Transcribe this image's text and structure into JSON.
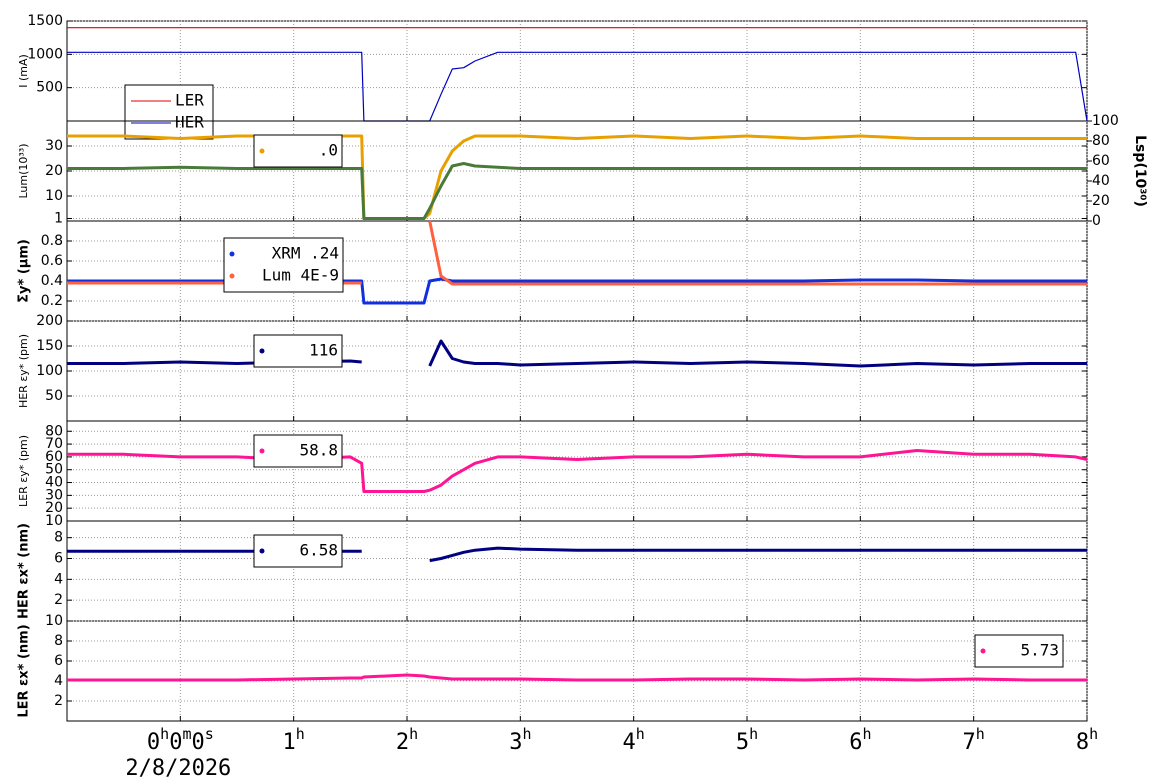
{
  "chart_data": [
    {
      "type": "line",
      "ylabel": "I (mA)",
      "xlim": [
        -1,
        8
      ],
      "ylim": [
        0,
        1500
      ],
      "yticks": [
        500,
        1000,
        1500
      ],
      "grid": true,
      "legend": "upper left",
      "x": [
        -1,
        -0.5,
        0,
        0.5,
        1,
        1.5,
        1.6,
        1.62,
        2.0,
        2.15,
        2.2,
        2.3,
        2.4,
        2.5,
        2.6,
        2.8,
        3,
        3.5,
        4,
        4.5,
        5,
        5.5,
        6,
        6.5,
        7,
        7.5,
        7.9,
        8
      ],
      "series": [
        {
          "name": "LER",
          "color": "#e00000",
          "values": [
            1400,
            1400,
            1400,
            1400,
            1400,
            1400,
            1400,
            1400,
            1400,
            1400,
            1400,
            1400,
            1400,
            1400,
            1400,
            1400,
            1400,
            1400,
            1400,
            1400,
            1400,
            1400,
            1400,
            1400,
            1400,
            1400,
            1400,
            1400
          ]
        },
        {
          "name": "HER",
          "color": "#0000c0",
          "values": [
            1030,
            1030,
            1030,
            1030,
            1030,
            1030,
            1030,
            0,
            0,
            0,
            0,
            400,
            780,
            800,
            900,
            1030,
            1030,
            1030,
            1030,
            1030,
            1030,
            1030,
            1030,
            1030,
            1030,
            1030,
            1030,
            0
          ]
        }
      ]
    },
    {
      "type": "line",
      "ylabel": "Lum(10³³)",
      "y2label": "Lsp(10³⁰)",
      "xlim": [
        -1,
        8
      ],
      "ylim": [
        0,
        40
      ],
      "yticks": [
        1,
        10,
        20,
        30
      ],
      "y2lim": [
        0,
        100
      ],
      "y2ticks": [
        0,
        20,
        40,
        60,
        80,
        100
      ],
      "grid": true,
      "legend": "upper left",
      "x": [
        -1,
        -0.5,
        0,
        0.5,
        1,
        1.5,
        1.6,
        1.62,
        2.0,
        2.15,
        2.2,
        2.3,
        2.4,
        2.5,
        2.6,
        2.8,
        3,
        3.5,
        4,
        4.5,
        5,
        5.5,
        6,
        6.5,
        7,
        7.5,
        7.9,
        8
      ],
      "series": [
        {
          "name": ".0",
          "color": "#e8a000",
          "values": [
            34,
            34,
            33,
            34,
            34,
            34,
            34,
            1,
            1,
            1,
            3,
            20,
            28,
            32,
            34,
            34,
            34,
            33,
            34,
            33,
            34,
            33,
            34,
            33,
            33,
            33,
            33,
            33
          ]
        },
        {
          "color": "#4a7a3a",
          "values": [
            21,
            21,
            21.5,
            21,
            21,
            21,
            21,
            1,
            1,
            1,
            5,
            14,
            22,
            23,
            22,
            21.5,
            21,
            21,
            21,
            21,
            21,
            21,
            21,
            21,
            21,
            21,
            21,
            21
          ]
        }
      ]
    },
    {
      "type": "line",
      "ylabel": "Σy* (μm)",
      "xlim": [
        -1,
        8
      ],
      "ylim": [
        0,
        1
      ],
      "yticks": [
        0.2,
        0.4,
        0.6,
        0.8
      ],
      "grid": true,
      "legend": "upper left",
      "x": [
        -1,
        -0.5,
        0,
        0.5,
        1,
        1.5,
        1.6,
        1.62,
        2.0,
        2.15,
        2.2,
        2.3,
        2.4,
        2.5,
        2.6,
        2.8,
        3,
        3.5,
        4,
        4.5,
        5,
        5.5,
        6,
        6.5,
        7,
        7.5,
        7.9,
        8
      ],
      "series": [
        {
          "name": "XRM .24",
          "color": "#1030e0",
          "values": [
            0.4,
            0.4,
            0.4,
            0.4,
            0.4,
            0.4,
            0.4,
            0.18,
            0.18,
            0.18,
            0.4,
            0.42,
            0.4,
            0.4,
            0.4,
            0.4,
            0.4,
            0.4,
            0.4,
            0.4,
            0.4,
            0.4,
            0.41,
            0.41,
            0.4,
            0.4,
            0.4,
            0.4
          ]
        },
        {
          "name": "Lum 4E-9",
          "color": "#ff6040",
          "values": [
            0.38,
            0.38,
            0.38,
            0.38,
            0.38,
            0.38,
            0.38,
            null,
            null,
            null,
            1.0,
            0.45,
            0.37,
            0.37,
            0.37,
            0.37,
            0.37,
            0.37,
            0.37,
            0.37,
            0.37,
            0.37,
            0.37,
            0.37,
            0.37,
            0.37,
            0.37,
            0.37
          ]
        }
      ]
    },
    {
      "type": "line",
      "ylabel": "HER εy* (pm)",
      "xlim": [
        -1,
        8
      ],
      "ylim": [
        0,
        200
      ],
      "yticks": [
        50,
        100,
        150,
        200
      ],
      "grid": true,
      "legend": "upper left",
      "x": [
        -1,
        -0.5,
        0,
        0.5,
        1,
        1.5,
        1.6,
        1.62,
        2.0,
        2.15,
        2.2,
        2.3,
        2.4,
        2.5,
        2.6,
        2.8,
        3,
        3.5,
        4,
        4.5,
        5,
        5.5,
        6,
        6.5,
        7,
        7.5,
        7.9,
        8
      ],
      "series": [
        {
          "name": "116",
          "color": "#000080",
          "values": [
            115,
            115,
            118,
            115,
            118,
            120,
            118,
            null,
            null,
            null,
            110,
            160,
            125,
            118,
            115,
            115,
            112,
            115,
            118,
            115,
            118,
            115,
            110,
            115,
            112,
            115,
            115,
            115
          ]
        }
      ]
    },
    {
      "type": "line",
      "ylabel": "LER εy* (pm)",
      "xlim": [
        -1,
        8
      ],
      "ylim": [
        10,
        88
      ],
      "yticks": [
        10,
        20,
        30,
        40,
        50,
        60,
        70,
        80
      ],
      "grid": true,
      "legend": "upper left",
      "x": [
        -1,
        -0.5,
        0,
        0.5,
        1,
        1.5,
        1.6,
        1.62,
        2.0,
        2.15,
        2.2,
        2.3,
        2.4,
        2.5,
        2.6,
        2.8,
        3,
        3.5,
        4,
        4.5,
        5,
        5.5,
        6,
        6.5,
        7,
        7.5,
        7.9,
        8
      ],
      "series": [
        {
          "name": "58.8",
          "color": "#ff1493",
          "values": [
            62,
            62,
            60,
            60,
            58,
            60,
            55,
            33,
            33,
            33,
            34,
            38,
            45,
            50,
            55,
            60,
            60,
            58,
            60,
            60,
            62,
            60,
            60,
            65,
            62,
            62,
            60,
            58
          ]
        }
      ]
    },
    {
      "type": "line",
      "ylabel": "HER εx* (nm)",
      "xlim": [
        -1,
        8
      ],
      "ylim": [
        0,
        9.6
      ],
      "yticks": [
        2,
        4,
        6,
        8
      ],
      "grid": true,
      "legend": "upper left",
      "x": [
        -1,
        -0.5,
        0,
        0.5,
        1,
        1.5,
        1.6,
        1.62,
        2.0,
        2.15,
        2.2,
        2.3,
        2.4,
        2.5,
        2.6,
        2.8,
        3,
        3.5,
        4,
        4.5,
        5,
        5.5,
        6,
        6.5,
        7,
        7.5,
        7.9,
        8
      ],
      "series": [
        {
          "name": "6.58",
          "color": "#000080",
          "values": [
            6.7,
            6.7,
            6.7,
            6.7,
            6.7,
            6.7,
            6.7,
            null,
            null,
            null,
            5.8,
            6.0,
            6.3,
            6.6,
            6.8,
            7.0,
            6.9,
            6.8,
            6.8,
            6.8,
            6.8,
            6.8,
            6.8,
            6.8,
            6.8,
            6.8,
            6.8,
            6.8
          ]
        }
      ]
    },
    {
      "type": "line",
      "ylabel": "LER εx* (nm)",
      "xlim": [
        -1,
        8
      ],
      "ylim": [
        0,
        10
      ],
      "yticks": [
        2,
        4,
        6,
        8,
        10
      ],
      "grid": true,
      "legend": "upper right",
      "x": [
        -1,
        -0.5,
        0,
        0.5,
        1,
        1.5,
        1.6,
        1.62,
        2.0,
        2.15,
        2.2,
        2.3,
        2.4,
        2.5,
        2.6,
        2.8,
        3,
        3.5,
        4,
        4.5,
        5,
        5.5,
        6,
        6.5,
        7,
        7.5,
        7.9,
        8
      ],
      "xticks": [
        {
          "value": 0,
          "label": "0h0m0s"
        },
        {
          "value": 1,
          "label": "1h"
        },
        {
          "value": 2,
          "label": "2h"
        },
        {
          "value": 3,
          "label": "3h"
        },
        {
          "value": 4,
          "label": "4h"
        },
        {
          "value": 5,
          "label": "5h"
        },
        {
          "value": 6,
          "label": "6h"
        },
        {
          "value": 7,
          "label": "7h"
        },
        {
          "value": 8,
          "label": "8h"
        }
      ],
      "date": "2/8/2026",
      "series": [
        {
          "name": "5.73",
          "color": "#ff1493",
          "values": [
            4.1,
            4.1,
            4.1,
            4.1,
            4.2,
            4.3,
            4.3,
            4.4,
            4.6,
            4.5,
            4.4,
            4.3,
            4.2,
            4.2,
            4.2,
            4.2,
            4.2,
            4.1,
            4.1,
            4.2,
            4.2,
            4.1,
            4.2,
            4.1,
            4.2,
            4.1,
            4.1,
            4.1
          ]
        }
      ]
    }
  ]
}
